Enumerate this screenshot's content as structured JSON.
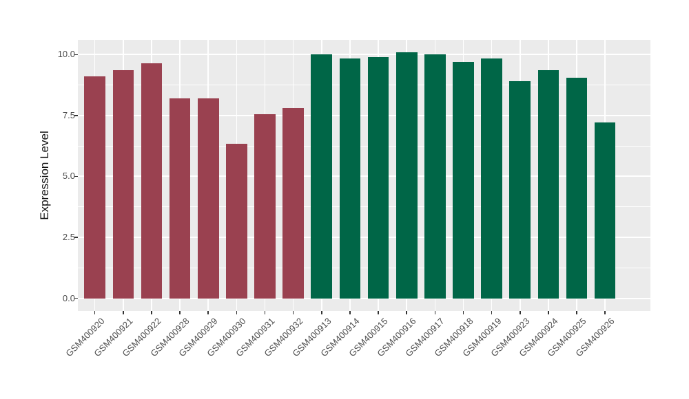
{
  "chart_data": {
    "type": "bar",
    "title": "",
    "xlabel": "",
    "ylabel": "Expression Level",
    "legend": "none",
    "grid": true,
    "axis": {
      "ylim": [
        -0.52,
        10.6
      ],
      "yticks": [
        {
          "value": 0.0,
          "label": "0.0"
        },
        {
          "value": 2.5,
          "label": "2.5"
        },
        {
          "value": 5.0,
          "label": "5.0"
        },
        {
          "value": 7.5,
          "label": "7.5"
        },
        {
          "value": 10.0,
          "label": "10.0"
        }
      ],
      "minor_yticks": [
        1.25,
        3.75,
        6.25,
        8.75
      ],
      "x_label_angle": 45
    },
    "categories": [
      "GSM400920",
      "GSM400921",
      "GSM400922",
      "GSM400928",
      "GSM400929",
      "GSM400930",
      "GSM400931",
      "GSM400932",
      "GSM400913",
      "GSM400914",
      "GSM400915",
      "GSM400916",
      "GSM400917",
      "GSM400918",
      "GSM400919",
      "GSM400923",
      "GSM400924",
      "GSM400925",
      "GSM400926"
    ],
    "values": [
      9.1,
      9.35,
      9.65,
      8.2,
      8.2,
      6.35,
      7.55,
      7.8,
      10.0,
      9.85,
      9.9,
      10.1,
      10.0,
      9.7,
      9.85,
      8.9,
      9.35,
      9.05,
      7.2
    ],
    "groups": [
      "group1",
      "group1",
      "group1",
      "group1",
      "group1",
      "group1",
      "group1",
      "group1",
      "group2",
      "group2",
      "group2",
      "group2",
      "group2",
      "group2",
      "group2",
      "group2",
      "group2",
      "group2",
      "group2"
    ],
    "group_colors": {
      "group1": "#9a4150",
      "group2": "#006647"
    },
    "colors": {
      "panel_bg": "#ebebeb",
      "grid": "#ffffff",
      "tick": "#333333",
      "tick_label": "#4d4d4d",
      "axis_title": "#111111"
    }
  }
}
